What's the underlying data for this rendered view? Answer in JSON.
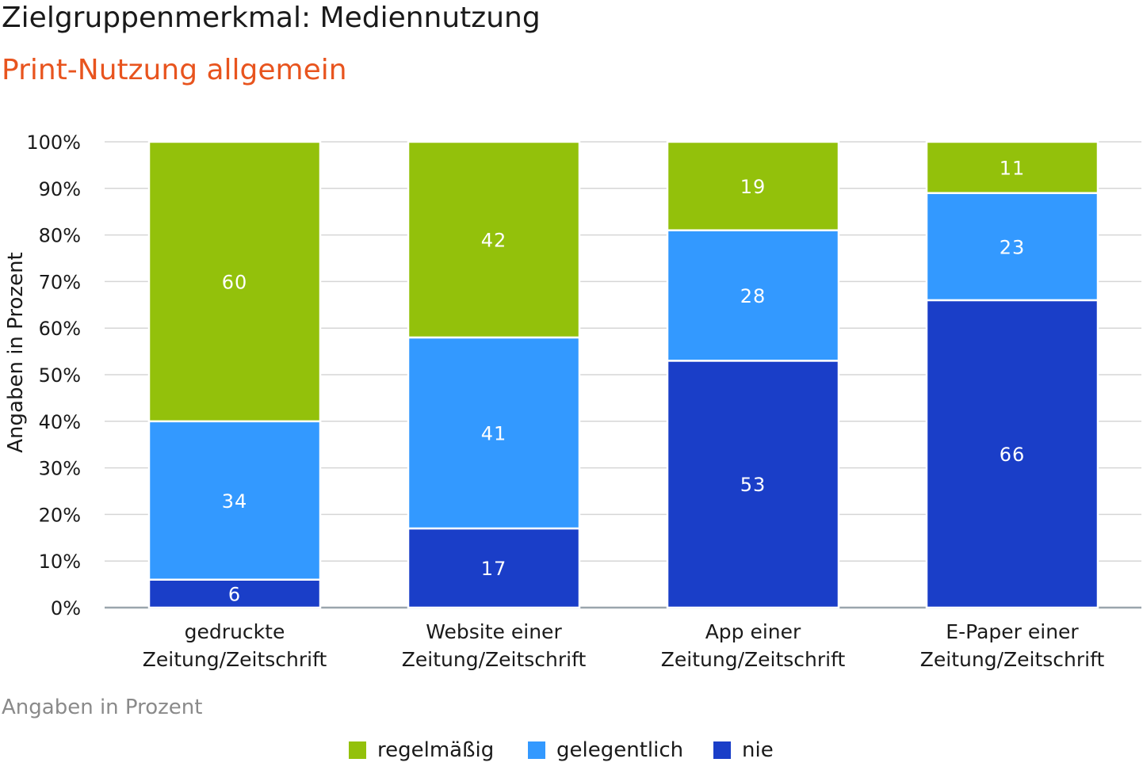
{
  "header": {
    "title": "Zielgruppenmerkmal: Mediennutzung",
    "subtitle": "Print-Nutzung allgemein",
    "subtitle_color": "#e8541e"
  },
  "footnote": "Angaben in Prozent",
  "colors": {
    "regelmaessig": "#93c10b",
    "gelegentlich": "#3399ff",
    "nie": "#1a3ec8",
    "grid": "#d6d6d6",
    "axis": "#9aa5ad"
  },
  "chart_data": {
    "type": "bar",
    "stacked": true,
    "title": "Print-Nutzung allgemein",
    "ylabel": "Angaben in Prozent",
    "xlabel": "",
    "ylim": [
      0,
      100
    ],
    "yticks": [
      "0%",
      "10%",
      "20%",
      "30%",
      "40%",
      "50%",
      "60%",
      "70%",
      "80%",
      "90%",
      "100%"
    ],
    "categories": [
      [
        "gedruckte",
        "Zeitung/Zeitschrift"
      ],
      [
        "Website einer",
        "Zeitung/Zeitschrift"
      ],
      [
        "App einer",
        "Zeitung/Zeitschrift"
      ],
      [
        "E-Paper einer",
        "Zeitung/Zeitschrift"
      ]
    ],
    "series": [
      {
        "name": "nie",
        "key": "nie",
        "values": [
          6,
          17,
          53,
          66
        ]
      },
      {
        "name": "gelegentlich",
        "key": "gelegentlich",
        "values": [
          34,
          41,
          28,
          23
        ]
      },
      {
        "name": "regelmäßig",
        "key": "regelmaessig",
        "values": [
          60,
          42,
          19,
          11
        ]
      }
    ],
    "legend": {
      "position": "bottom",
      "items": [
        {
          "label": "regelmäßig",
          "key": "regelmaessig"
        },
        {
          "label": "gelegentlich",
          "key": "gelegentlich"
        },
        {
          "label": "nie",
          "key": "nie"
        }
      ]
    }
  }
}
